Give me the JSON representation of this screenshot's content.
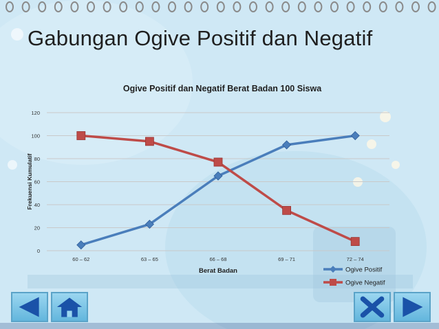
{
  "slide": {
    "title": "Gabungan Ogive Positif dan Negatif"
  },
  "colors": {
    "series_positive": "#4a7ebb",
    "series_negative": "#be4b48",
    "grid": "#c9c9c9",
    "nav_blue": "#1a52a8"
  },
  "nav": {
    "prev_icon": "left-arrow-icon",
    "home_icon": "home-icon",
    "close_icon": "close-x-icon",
    "next_icon": "right-arrow-icon"
  },
  "chart_data": {
    "type": "line",
    "title": "Ogive Positif dan Negatif  Berat Badan 100 Siswa",
    "xlabel": "Berat Badan",
    "ylabel": "Frekuensi Kumulatif",
    "categories": [
      "60 – 62",
      "63 – 65",
      "66 – 68",
      "69 – 71",
      "72 – 74"
    ],
    "ylim": [
      0,
      120
    ],
    "yticks": [
      0,
      20,
      40,
      60,
      80,
      100,
      120
    ],
    "grid": true,
    "legend_position": "bottom-right",
    "series": [
      {
        "name": "Ogive Positif",
        "marker": "diamond",
        "values": [
          5,
          23,
          65,
          92,
          100
        ]
      },
      {
        "name": "Ogive Negatif",
        "marker": "square",
        "values": [
          100,
          95,
          77,
          35,
          8
        ]
      }
    ]
  }
}
